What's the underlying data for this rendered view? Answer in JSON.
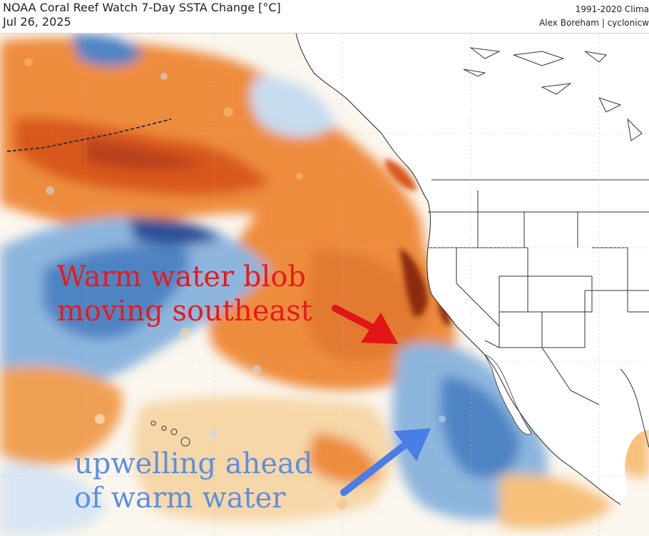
{
  "header": {
    "title": "NOAA Coral Reef Watch 7-Day SSTA Change [°C]",
    "date": "Jul 26, 2025",
    "climatology": "1991-2020 Clima",
    "credit": "Alex Boreham | cyclonicw"
  },
  "annotations": {
    "warm_blob": {
      "line1": "Warm water blob",
      "line2": "moving southeast",
      "color": "#e81a1a"
    },
    "upwelling": {
      "line1": "upwelling ahead",
      "line2": "of warm water",
      "color": "#5c8fe0"
    }
  },
  "colors": {
    "ocean_neutral": "#fbf6ee",
    "warm_light": "#f6c07a",
    "warm_mid": "#ee8c3c",
    "warm_strong": "#d9591f",
    "warm_extreme": "#8e2a10",
    "cool_light": "#c7dcef",
    "cool_mid": "#8db6de",
    "cool_strong": "#4f84c4",
    "cool_extreme": "#2b4f98",
    "land": "#ffffff",
    "border": "#333333",
    "warm_arrow": "#e01515",
    "cool_arrow": "#4a7de6"
  }
}
